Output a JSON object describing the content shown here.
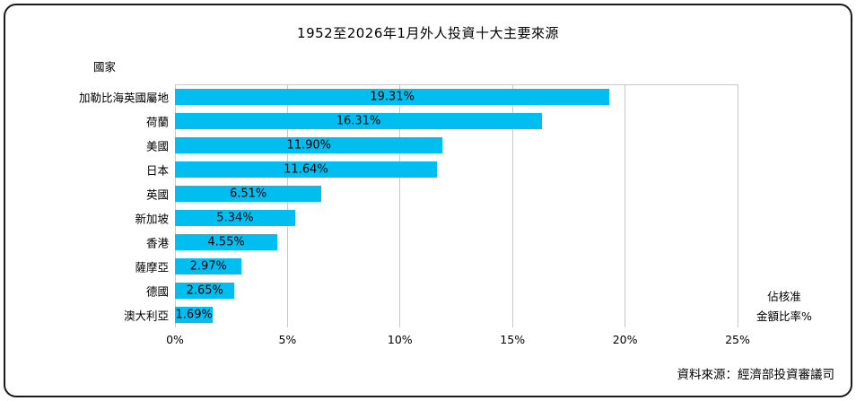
{
  "chart_data": {
    "type": "bar",
    "orientation": "horizontal",
    "title": "1952至2026年1月外人投資十大主要來源",
    "category_axis_title": "國家",
    "value_axis_title_lines": [
      "佔核准",
      "金額比率%"
    ],
    "categories": [
      "加勒比海英國屬地",
      "荷蘭",
      "美國",
      "日本",
      "英國",
      "新加坡",
      "香港",
      "薩摩亞",
      "德國",
      "澳大利亞"
    ],
    "values": [
      19.31,
      16.31,
      11.9,
      11.64,
      6.51,
      5.34,
      4.55,
      2.97,
      2.65,
      1.69
    ],
    "value_labels": [
      "19.31%",
      "16.31%",
      "11.90%",
      "11.64%",
      "6.51%",
      "5.34%",
      "4.55%",
      "2.97%",
      "2.65%",
      "1.69%"
    ],
    "xlim": [
      0,
      25
    ],
    "x_tick_labels": [
      "0%",
      "5%",
      "10%",
      "15%",
      "20%",
      "25%"
    ],
    "grid": true,
    "legend": false,
    "bar_color": "#00BFF0",
    "gridline_color": "#C9C9C9",
    "source_note": "資料來源：經濟部投資審議司"
  }
}
